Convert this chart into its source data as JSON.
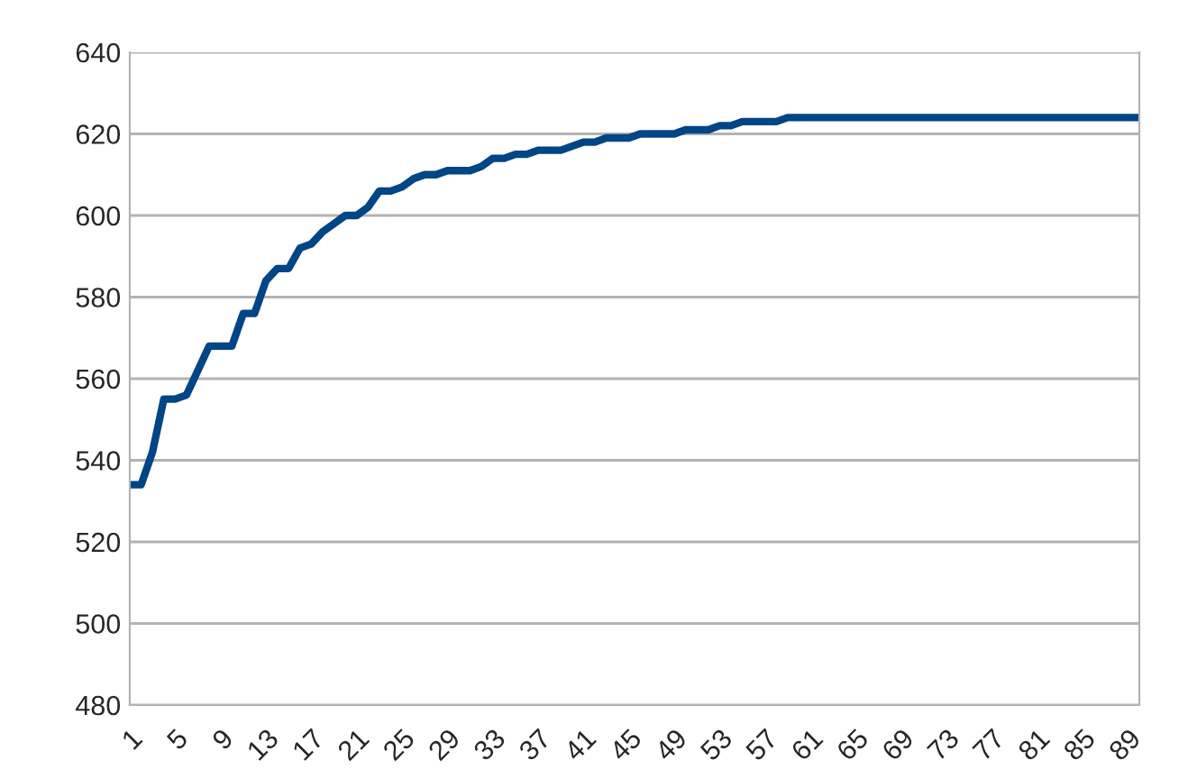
{
  "chart_data": {
    "type": "line",
    "categories": [
      "1",
      null,
      null,
      null,
      "5",
      null,
      null,
      null,
      "9",
      null,
      null,
      null,
      "13",
      null,
      null,
      null,
      "17",
      null,
      null,
      null,
      "21",
      null,
      null,
      null,
      "25",
      null,
      null,
      null,
      "29",
      null,
      null,
      null,
      "33",
      null,
      null,
      null,
      "37",
      null,
      null,
      null,
      "41",
      null,
      null,
      null,
      "45",
      null,
      null,
      null,
      "49",
      null,
      null,
      null,
      "53",
      null,
      null,
      null,
      "57",
      null,
      null,
      null,
      "61",
      null,
      null,
      null,
      "65",
      null,
      null,
      null,
      "69",
      null,
      null,
      null,
      "73",
      null,
      null,
      null,
      "77",
      null,
      null,
      null,
      "81",
      null,
      null,
      null,
      "85",
      null,
      null,
      null,
      "89",
      null
    ],
    "series": [
      {
        "color": "#004586",
        "values": [
          534,
          534,
          542,
          555,
          555,
          556,
          562,
          568,
          568,
          568,
          576,
          576,
          584,
          587,
          587,
          592,
          593,
          596,
          598,
          600,
          600,
          602,
          606,
          606,
          607,
          609,
          610,
          610,
          611,
          611,
          611,
          612,
          614,
          614,
          615,
          615,
          616,
          616,
          616,
          617,
          618,
          618,
          619,
          619,
          619,
          620,
          620,
          620,
          620,
          621,
          621,
          621,
          622,
          622,
          623,
          623,
          623,
          623,
          624,
          624,
          624,
          624,
          624,
          624,
          624,
          624,
          624,
          624,
          624,
          624,
          624,
          624,
          624,
          624,
          624,
          624,
          624,
          624,
          624,
          624,
          624,
          624,
          624,
          624,
          624,
          624,
          624,
          624,
          624,
          624
        ]
      }
    ],
    "ylim": [
      480,
      640
    ],
    "yticks": [
      480,
      500,
      520,
      540,
      560,
      580,
      600,
      620,
      640
    ],
    "grid": "y",
    "legend": false,
    "marker": "none",
    "line_style": "solid"
  }
}
